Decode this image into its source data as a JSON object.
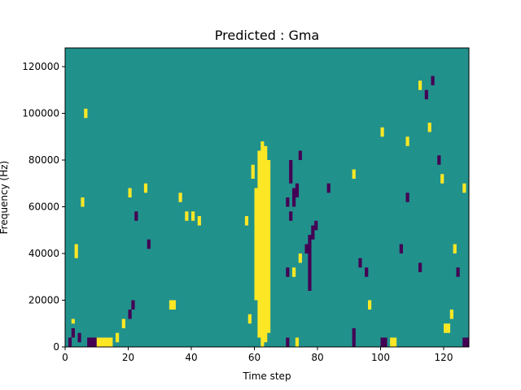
{
  "chart_data": {
    "type": "heatmap",
    "title": "Predicted : Gma",
    "xlabel": "Time step",
    "ylabel": "Frequency (Hz)",
    "xlim": [
      0,
      128
    ],
    "ylim": [
      0,
      128000
    ],
    "xticks": [
      0,
      20,
      40,
      60,
      80,
      100,
      120
    ],
    "yticks": [
      0,
      20000,
      40000,
      60000,
      80000,
      100000,
      120000
    ],
    "ytick_labels": [
      "0",
      "20000",
      "40000",
      "60000",
      "80000",
      "100000",
      "120000"
    ],
    "grid": false,
    "legend": "none",
    "n_time_steps": 128,
    "n_freq_bins": 128,
    "bin_width_hz": 1000,
    "colormap": "viridis",
    "value_levels": [
      -1,
      0,
      1
    ],
    "background_value": 0,
    "cell_colors": {
      "low": "#440154",
      "mid": "#21918c",
      "high": "#fde725"
    },
    "cells_high": [
      [
        60,
        20,
        68
      ],
      [
        61,
        4,
        84
      ],
      [
        62,
        0,
        88
      ],
      [
        63,
        2,
        86
      ],
      [
        64,
        6,
        80
      ],
      [
        59,
        72,
        78
      ],
      [
        58,
        10,
        14
      ],
      [
        57,
        52,
        56
      ],
      [
        72,
        30,
        34
      ],
      [
        73,
        0,
        4
      ],
      [
        74,
        36,
        40
      ],
      [
        2,
        10,
        12
      ],
      [
        3,
        38,
        44
      ],
      [
        5,
        60,
        64
      ],
      [
        6,
        98,
        102
      ],
      [
        10,
        0,
        4
      ],
      [
        11,
        0,
        4
      ],
      [
        12,
        0,
        4
      ],
      [
        13,
        0,
        4
      ],
      [
        14,
        0,
        4
      ],
      [
        16,
        2,
        6
      ],
      [
        18,
        8,
        12
      ],
      [
        20,
        64,
        68
      ],
      [
        25,
        66,
        70
      ],
      [
        33,
        16,
        20
      ],
      [
        34,
        16,
        20
      ],
      [
        36,
        62,
        66
      ],
      [
        38,
        54,
        58
      ],
      [
        40,
        54,
        58
      ],
      [
        42,
        52,
        56
      ],
      [
        91,
        72,
        76
      ],
      [
        96,
        16,
        20
      ],
      [
        100,
        90,
        94
      ],
      [
        103,
        0,
        4
      ],
      [
        104,
        0,
        4
      ],
      [
        108,
        86,
        90
      ],
      [
        112,
        110,
        114
      ],
      [
        115,
        92,
        96
      ],
      [
        119,
        70,
        74
      ],
      [
        120,
        6,
        10
      ],
      [
        121,
        6,
        10
      ],
      [
        122,
        12,
        16
      ],
      [
        123,
        40,
        44
      ],
      [
        126,
        66,
        70
      ]
    ],
    "cells_low": [
      [
        1,
        0,
        4
      ],
      [
        2,
        4,
        8
      ],
      [
        4,
        2,
        6
      ],
      [
        7,
        0,
        4
      ],
      [
        8,
        0,
        4
      ],
      [
        9,
        0,
        4
      ],
      [
        20,
        12,
        16
      ],
      [
        21,
        16,
        20
      ],
      [
        22,
        54,
        58
      ],
      [
        26,
        42,
        46
      ],
      [
        70,
        0,
        4
      ],
      [
        70,
        30,
        34
      ],
      [
        70,
        60,
        64
      ],
      [
        71,
        54,
        58
      ],
      [
        71,
        70,
        80
      ],
      [
        72,
        60,
        68
      ],
      [
        73,
        64,
        70
      ],
      [
        74,
        80,
        84
      ],
      [
        76,
        40,
        44
      ],
      [
        77,
        24,
        48
      ],
      [
        78,
        46,
        52
      ],
      [
        79,
        50,
        54
      ],
      [
        83,
        66,
        70
      ],
      [
        91,
        0,
        8
      ],
      [
        93,
        34,
        38
      ],
      [
        95,
        30,
        34
      ],
      [
        100,
        0,
        4
      ],
      [
        101,
        0,
        4
      ],
      [
        106,
        40,
        44
      ],
      [
        108,
        62,
        66
      ],
      [
        112,
        32,
        36
      ],
      [
        114,
        106,
        110
      ],
      [
        116,
        112,
        116
      ],
      [
        118,
        78,
        82
      ],
      [
        124,
        30,
        34
      ],
      [
        126,
        0,
        4
      ],
      [
        127,
        0,
        4
      ]
    ]
  }
}
